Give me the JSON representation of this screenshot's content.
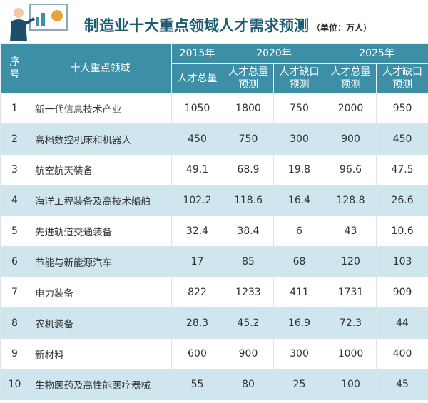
{
  "header": {
    "title": "制造业十大重点领域人才需求预测",
    "unit": "（单位：万人）"
  },
  "table": {
    "columns": {
      "index": "序号",
      "field": "十大重点领域",
      "groups": [
        {
          "year": "2015年",
          "cols": [
            "人才总量"
          ]
        },
        {
          "year": "2020年",
          "cols": [
            "人才总量预测",
            "人才缺口预测"
          ]
        },
        {
          "year": "2025年",
          "cols": [
            "人才总量预测",
            "人才缺口预测"
          ]
        }
      ]
    },
    "rows": [
      [
        1,
        "新一代信息技术产业",
        1050,
        1800,
        750,
        2000,
        950
      ],
      [
        2,
        "高档数控机床和机器人",
        450,
        750,
        300,
        900,
        450
      ],
      [
        3,
        "航空航天装备",
        49.1,
        68.9,
        19.8,
        96.6,
        47.5
      ],
      [
        4,
        "海洋工程装备及高技术船舶",
        102.2,
        118.6,
        16.4,
        128.8,
        26.6
      ],
      [
        5,
        "先进轨道交通装备",
        32.4,
        38.4,
        6,
        43,
        10.6
      ],
      [
        6,
        "节能与新能源汽车",
        17,
        85,
        68,
        120,
        103
      ],
      [
        7,
        "电力装备",
        822,
        1233,
        411,
        1731,
        909
      ],
      [
        8,
        "农机装备",
        28.3,
        45.2,
        16.9,
        72.3,
        44
      ],
      [
        9,
        "新材料",
        600,
        900,
        300,
        1000,
        400
      ],
      [
        10,
        "生物医药及高性能医疗器械",
        55,
        80,
        25,
        100,
        45
      ]
    ]
  }
}
